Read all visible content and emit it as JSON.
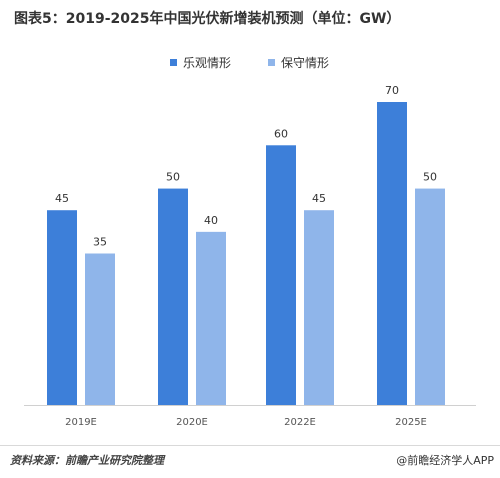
{
  "title": "图表5：2019-2025年中国光伏新增装机预测（单位：GW）",
  "source": "资料来源：前瞻产业研究院整理",
  "credit": "@前瞻经济学人APP",
  "colors": {
    "optimistic": "#3d7fd9",
    "conservative": "#8fb5ea",
    "axis": "#d0d0d0",
    "text": "#333333"
  },
  "chart_data": {
    "type": "bar",
    "title": "图表5：2019-2025年中国光伏新增装机预测（单位：GW）",
    "categories": [
      "2019E",
      "2020E",
      "2022E",
      "2025E"
    ],
    "series": [
      {
        "name": "乐观情形",
        "values": [
          45,
          50,
          60,
          70
        ]
      },
      {
        "name": "保守情形",
        "values": [
          35,
          40,
          45,
          50
        ]
      }
    ],
    "ylim": [
      0,
      70
    ],
    "grid": false,
    "legend": "top-center",
    "data_labels": true
  }
}
